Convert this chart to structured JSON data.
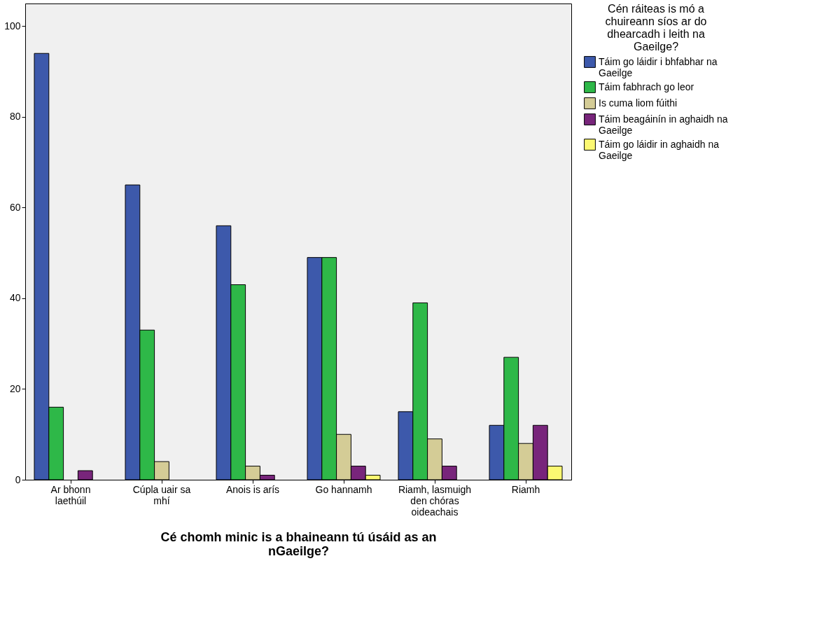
{
  "chart_data": {
    "type": "bar",
    "xlabel": "Cé chomh minic is a bhaineann tú úsáid as an nGaeilge?",
    "legend_title": "Cén ráiteas is mó a chuireann síos ar do dhearcadh i leith na Gaeilge?",
    "categories": [
      "Ar bhonn laethúil",
      "Cúpla uair sa mhí",
      "Anois is arís",
      "Go hannamh",
      "Riamh, lasmuigh den chóras oideachais",
      "Riamh"
    ],
    "series": [
      {
        "name": "Táim go láidir i bhfabhar na Gaeilge",
        "color": "#3d59ab",
        "values": [
          94,
          65,
          56,
          49,
          15,
          12
        ]
      },
      {
        "name": "Táim fabhrach go leor",
        "color": "#2eb848",
        "values": [
          16,
          33,
          43,
          49,
          39,
          27
        ]
      },
      {
        "name": "Is cuma liom fúithi",
        "color": "#d4cc96",
        "values": [
          null,
          4,
          3,
          10,
          9,
          8
        ]
      },
      {
        "name": "Táim beagáinín in aghaidh na Gaeilge",
        "color": "#78257b",
        "values": [
          2,
          null,
          1,
          3,
          3,
          12
        ]
      },
      {
        "name": "Táim go láidir in aghaidh na Gaeilge",
        "color": "#fbf872",
        "values": [
          null,
          null,
          null,
          1,
          null,
          3
        ]
      }
    ],
    "ylim": [
      0,
      105
    ],
    "yticks": [
      0,
      20,
      40,
      60,
      80,
      100
    ],
    "grid": false,
    "legend": "right"
  }
}
